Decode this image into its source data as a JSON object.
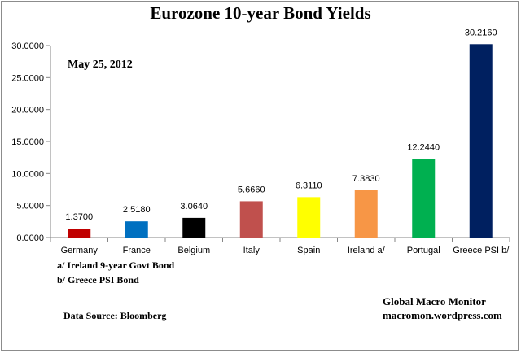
{
  "chart_data": {
    "type": "bar",
    "title": "Eurozone 10-year Bond Yields",
    "date_label": "May 25, 2012",
    "categories": [
      "Germany",
      "France",
      "Belgium",
      "Italy",
      "Spain",
      "Ireland  a/",
      "Portugal",
      "Greece PSI b/"
    ],
    "values": [
      1.37,
      2.518,
      3.064,
      5.666,
      6.311,
      7.383,
      12.244,
      30.216
    ],
    "value_labels": [
      "1.3700",
      "2.5180",
      "3.0640",
      "5.6660",
      "6.3110",
      "7.3830",
      "12.2440",
      "30.2160"
    ],
    "colors": [
      "#c00000",
      "#0070c0",
      "#000000",
      "#c0504d",
      "#ffff00",
      "#f79646",
      "#00b050",
      "#002060"
    ],
    "ylim": [
      0,
      30
    ],
    "yticks": [
      0,
      5,
      10,
      15,
      20,
      25,
      30
    ],
    "ytick_labels": [
      "0.0000",
      "5.0000",
      "10.0000",
      "15.0000",
      "20.0000",
      "25.0000",
      "30.0000"
    ],
    "grid": false,
    "legend": "none"
  },
  "notes": {
    "footnote_a": "a/  Ireland 9-year Govt Bond",
    "footnote_b": "b/  Greece PSI Bond",
    "data_source": "Data Source:  Bloomberg",
    "credit_name": "Global Macro Monitor",
    "credit_site": "macromon.wordpress.com"
  }
}
